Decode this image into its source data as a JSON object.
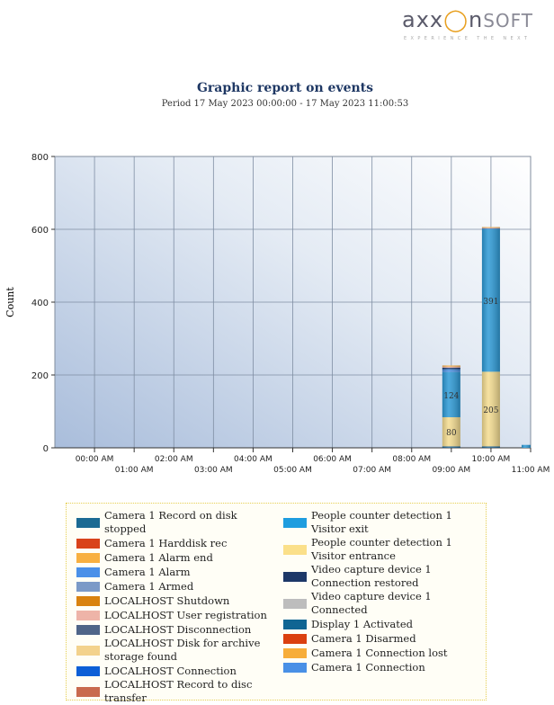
{
  "logo": {
    "text": "axxonsoft",
    "tagline": "EXPERIENCE THE NEXT"
  },
  "header": {
    "title": "Graphic report on events",
    "period": "Period 17 May 2023 00:00:00 - 17 May 2023 11:00:53"
  },
  "chart_data": {
    "type": "bar",
    "stacked": true,
    "title": "Graphic report on events",
    "ylabel": "Count",
    "xlabel": "",
    "ylim": [
      0,
      800
    ],
    "yticks": [
      0,
      200,
      400,
      600,
      800
    ],
    "categories": [
      "00:00 AM",
      "01:00 AM",
      "02:00 AM",
      "03:00 AM",
      "04:00 AM",
      "05:00 AM",
      "06:00 AM",
      "07:00 AM",
      "08:00 AM",
      "09:00 AM",
      "10:00 AM",
      "11:00 AM"
    ],
    "series": [
      {
        "name": "Display 1 Activated",
        "color": "#1f6391",
        "values": [
          0,
          0,
          0,
          0,
          0,
          0,
          0,
          0,
          0,
          4,
          4,
          0
        ]
      },
      {
        "name": "People counter detection 1 Visitor entrance",
        "color": "#f4dc90",
        "values": [
          0,
          0,
          0,
          0,
          0,
          0,
          0,
          0,
          0,
          80,
          205,
          0
        ],
        "labels": true
      },
      {
        "name": "People counter detection 1 Visitor exit",
        "color": "#2d9ad6",
        "values": [
          0,
          0,
          0,
          0,
          0,
          0,
          0,
          0,
          0,
          124,
          391,
          8
        ],
        "labels": true
      },
      {
        "name": "Camera 1 Connection",
        "color": "#4a8fe0",
        "values": [
          0,
          0,
          0,
          0,
          0,
          0,
          0,
          0,
          0,
          8,
          2,
          0
        ]
      },
      {
        "name": "Video capture device 1 Connection restored",
        "color": "#1e3a6b",
        "values": [
          0,
          0,
          0,
          0,
          0,
          0,
          0,
          0,
          0,
          4,
          1,
          0
        ]
      },
      {
        "name": "LOCALHOST User registration",
        "color": "#eab4a8",
        "values": [
          0,
          0,
          0,
          0,
          0,
          0,
          0,
          0,
          0,
          3,
          1,
          0
        ]
      },
      {
        "name": "Camera 1 Connection lost",
        "color": "#f6aa3c",
        "values": [
          0,
          0,
          0,
          0,
          0,
          0,
          0,
          0,
          0,
          3,
          2,
          0
        ]
      }
    ]
  },
  "legend": {
    "left": [
      {
        "label": "Camera 1 Record on disk stopped",
        "color": "#1b6a93"
      },
      {
        "label": "Camera 1 Harddisk rec",
        "color": "#d9421b"
      },
      {
        "label": "Camera 1 Alarm end",
        "color": "#f8b040"
      },
      {
        "label": "Camera 1 Alarm",
        "color": "#4a90e8"
      },
      {
        "label": "Camera 1 Armed",
        "color": "#7b9ac7"
      },
      {
        "label": "LOCALHOST Shutdown",
        "color": "#d9820e"
      },
      {
        "label": "LOCALHOST User registration",
        "color": "#eeb4a8"
      },
      {
        "label": "LOCALHOST Disconnection",
        "color": "#4f6588"
      },
      {
        "label": "LOCALHOST Disk for archive storage found",
        "color": "#f3d28c"
      },
      {
        "label": "LOCALHOST Connection",
        "color": "#0d5fd6"
      },
      {
        "label": "LOCALHOST Record to disc transfer",
        "color": "#c96a4e"
      }
    ],
    "right": [
      {
        "label": "People counter detection 1 Visitor exit",
        "color": "#1e9ddf"
      },
      {
        "label": "People counter detection 1 Visitor entrance",
        "color": "#fbe08a"
      },
      {
        "label": "Video capture device 1 Connection restored",
        "color": "#1d3868"
      },
      {
        "label": "Video capture device 1 Connected",
        "color": "#bdbdbd"
      },
      {
        "label": "Display 1 Activated",
        "color": "#106593"
      },
      {
        "label": "Camera 1 Disarmed",
        "color": "#db4010"
      },
      {
        "label": "Camera 1 Connection lost",
        "color": "#f7ad3a"
      },
      {
        "label": "Camera 1 Connection",
        "color": "#4990e6"
      }
    ]
  }
}
